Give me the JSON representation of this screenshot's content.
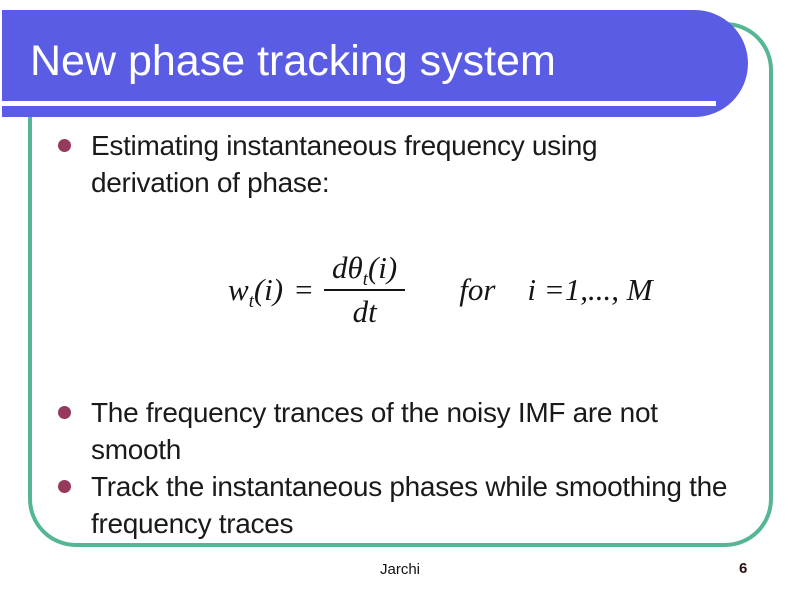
{
  "slide_title": "New phase tracking system",
  "bullets": {
    "b1": {
      "line1": "Estimating instantaneous frequency using",
      "line2": "derivation of phase:"
    },
    "b2": {
      "line1": "The frequency trances of the noisy IMF are not",
      "line2": "smooth"
    },
    "b3": {
      "line1": "Track the instantaneous phases while smoothing the",
      "line2": "frequency traces"
    }
  },
  "formula": {
    "lhs_base": "w",
    "lhs_sub": "t",
    "lhs_arg": "(i)",
    "equals_sign": "=",
    "numerator_base": "dθ",
    "numerator_sub": "t",
    "numerator_arg": "(i)",
    "denominator": "dt",
    "for_keyword": "for",
    "index_range": "i =1,..., M"
  },
  "footer": {
    "author": "Jarchi",
    "page_number": "6"
  },
  "colors": {
    "title_bar": "#5b5ce4",
    "frame_border": "#55b694",
    "bullet_dot": "#953a5c",
    "title_text": "#ffffff",
    "body_text": "#1a1a1a"
  }
}
